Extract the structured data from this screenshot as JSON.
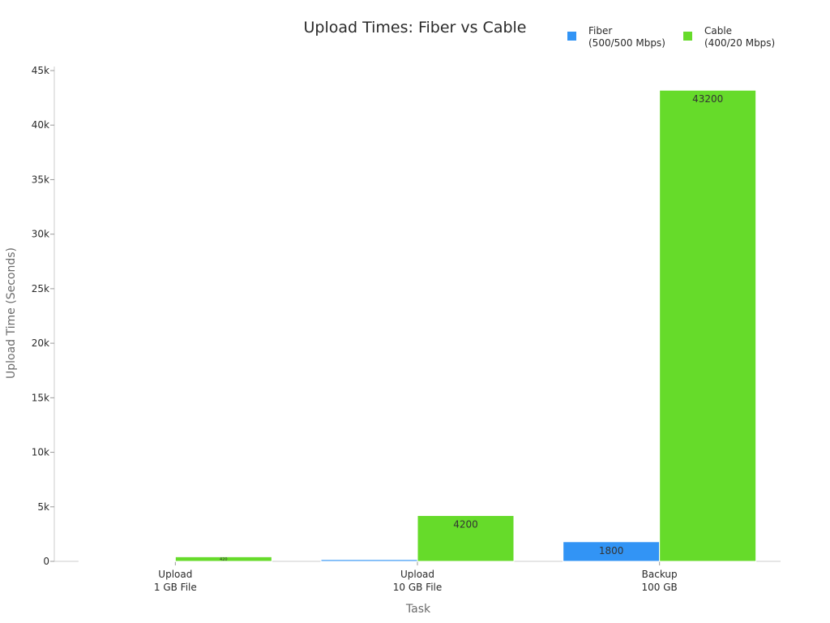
{
  "chart_data": {
    "type": "bar",
    "title": "Upload Times: Fiber vs Cable",
    "xlabel": "Task",
    "ylabel": "Upload Time (Seconds)",
    "categories": [
      [
        "Upload",
        "1 GB File"
      ],
      [
        "Upload",
        "10 GB File"
      ],
      [
        "Backup",
        "100 GB"
      ]
    ],
    "series": [
      {
        "name": [
          "Fiber",
          "(500/500 Mbps)"
        ],
        "color": "#3294f5",
        "values": [
          16,
          160,
          1800
        ],
        "labels": [
          "",
          "",
          "1800"
        ]
      },
      {
        "name": [
          "Cable",
          "(400/20 Mbps)"
        ],
        "color": "#66db2a",
        "values": [
          420,
          4200,
          43200
        ],
        "labels": [
          "420",
          "4200",
          "43200"
        ]
      }
    ],
    "ylim": [
      0,
      45000
    ],
    "yticks": [
      0,
      5000,
      10000,
      15000,
      20000,
      25000,
      30000,
      35000,
      40000,
      45000
    ],
    "ytick_labels": [
      "0",
      "5k",
      "10k",
      "15k",
      "20k",
      "25k",
      "30k",
      "35k",
      "40k",
      "45k"
    ],
    "legend_position": "top-right",
    "grid": false
  }
}
